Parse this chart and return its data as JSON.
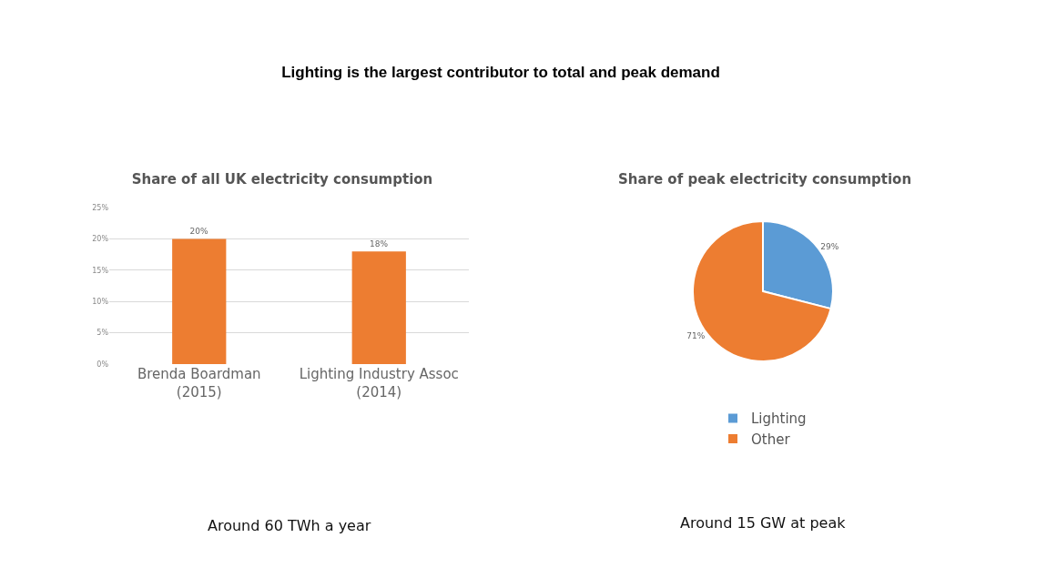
{
  "chart_data": [
    {
      "type": "bar",
      "title": "Lighting is the largest contributor to total and peak demand",
      "subtitle": "Share of all UK electricity consumption",
      "categories": [
        "Brenda Boardman (2015)",
        "Lighting Industry Assoc (2014)"
      ],
      "values": [
        20,
        18
      ],
      "color": "#ed7d31",
      "value_labels": [
        "20%",
        "18%"
      ],
      "ylim": [
        0,
        25
      ],
      "yticks": [
        {
          "value": 0,
          "label": "0%"
        },
        {
          "value": 5,
          "label": "5%"
        },
        {
          "value": 10,
          "label": "10%"
        },
        {
          "value": 15,
          "label": "15%"
        },
        {
          "value": 20,
          "label": "20%"
        },
        {
          "value": 25,
          "label": "25%"
        }
      ],
      "grid": "y",
      "annotations": [
        "Around 60 TWh a year"
      ]
    },
    {
      "type": "pie",
      "title": "Share of peak electricity consumption",
      "categories": [
        "Lighting",
        "Other"
      ],
      "values": [
        29,
        71
      ],
      "colors": [
        "#5b9bd5",
        "#ed7d31"
      ],
      "value_labels": [
        "29%",
        "71%"
      ],
      "legend": "bottom",
      "annotations": [
        "Around 15 GW at peak"
      ]
    }
  ]
}
